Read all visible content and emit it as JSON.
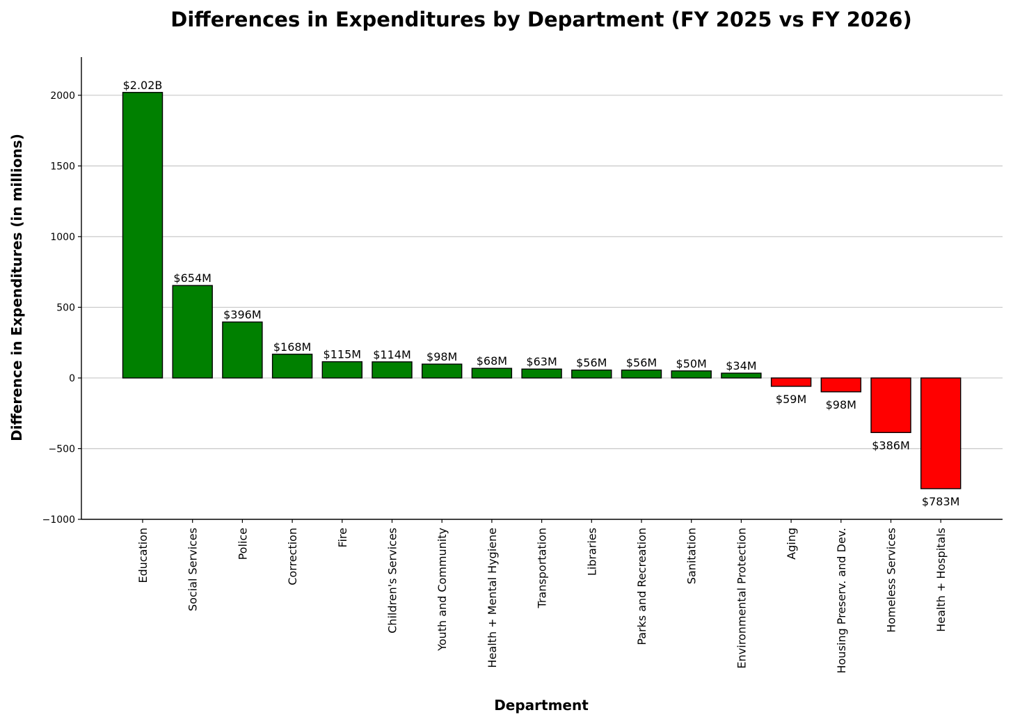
{
  "chart_data": {
    "type": "bar",
    "title": "Differences in Expenditures by Department (FY 2025 vs FY 2026)",
    "xlabel": "Department",
    "ylabel": "Difference in Expenditures (in millions)",
    "ylim": [
      -1000,
      2270
    ],
    "yticks": [
      -1000,
      -500,
      0,
      500,
      1000,
      1500,
      2000
    ],
    "ytick_labels": [
      "−1000",
      "−500",
      "0",
      "500",
      "1000",
      "1500",
      "2000"
    ],
    "grid": "horizontal",
    "categories": [
      "Education",
      "Social Services",
      "Police",
      "Correction",
      "Fire",
      "Children's Services",
      "Youth and Community",
      "Health + Mental Hygiene",
      "Transportation",
      "Libraries",
      "Parks and Recreation",
      "Sanitation",
      "Environmental Protection",
      "Aging",
      "Housing Preserv. and Dev.",
      "Homeless Services",
      "Health + Hospitals"
    ],
    "values": [
      2020,
      654,
      396,
      168,
      115,
      114,
      98,
      68,
      63,
      56,
      56,
      50,
      34,
      -59,
      -98,
      -386,
      -783
    ],
    "data_labels": [
      "$2.02B",
      "$654M",
      "$396M",
      "$168M",
      "$115M",
      "$114M",
      "$98M",
      "$68M",
      "$63M",
      "$56M",
      "$56M",
      "$50M",
      "$34M",
      "$59M",
      "$98M",
      "$386M",
      "$783M"
    ],
    "colors": {
      "positive": "#008000",
      "negative": "#ff0000"
    }
  }
}
